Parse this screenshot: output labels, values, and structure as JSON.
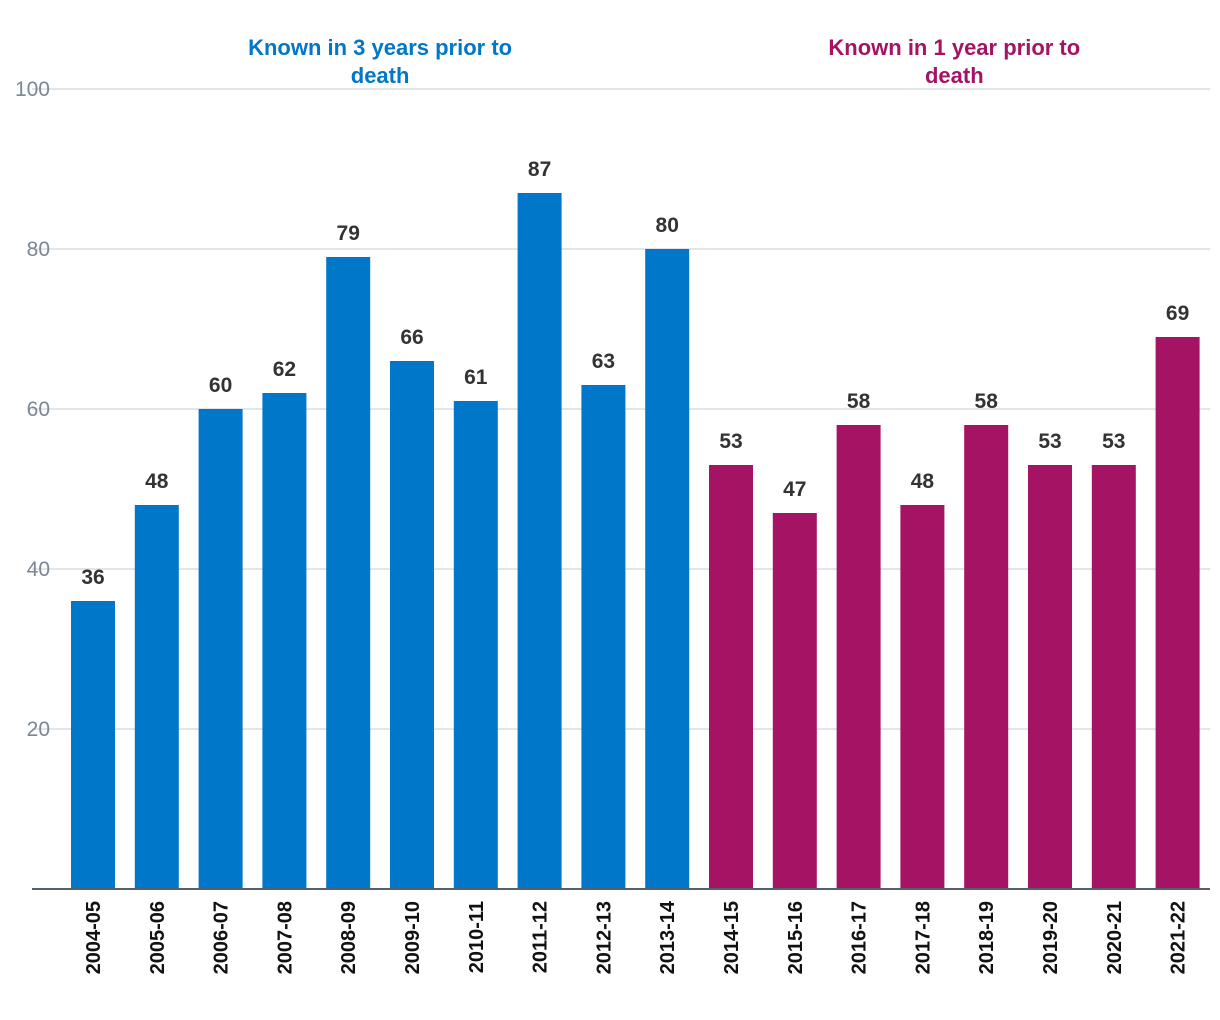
{
  "chart_data": {
    "type": "bar",
    "title": "",
    "xlabel": "",
    "ylabel": "",
    "ylim": [
      0,
      100
    ],
    "yticks": [
      20,
      40,
      60,
      80,
      100
    ],
    "grid": true,
    "categories": [
      "2004-05",
      "2005-06",
      "2006-07",
      "2007-08",
      "2008-09",
      "2009-10",
      "2010-11",
      "2011-12",
      "2012-13",
      "2013-14",
      "2014-15",
      "2015-16",
      "2016-17",
      "2017-18",
      "2018-19",
      "2019-20",
      "2020-21",
      "2021-22"
    ],
    "series": [
      {
        "name": "Known in 3 years prior to death",
        "color": "#0077c8",
        "values": [
          36,
          48,
          60,
          62,
          79,
          66,
          61,
          87,
          63,
          80,
          null,
          null,
          null,
          null,
          null,
          null,
          null,
          null
        ]
      },
      {
        "name": "Known in 1 year prior to death",
        "color": "#a51464",
        "values": [
          null,
          null,
          null,
          null,
          null,
          null,
          null,
          null,
          null,
          null,
          53,
          47,
          58,
          48,
          58,
          53,
          53,
          69
        ]
      }
    ],
    "annotations": [
      {
        "lines": [
          "Known in 3 years prior to",
          "death"
        ],
        "color": "#0077c8",
        "series": 0
      },
      {
        "lines": [
          "Known in 1 year prior to",
          "death"
        ],
        "color": "#a51464",
        "series": 1
      }
    ]
  }
}
